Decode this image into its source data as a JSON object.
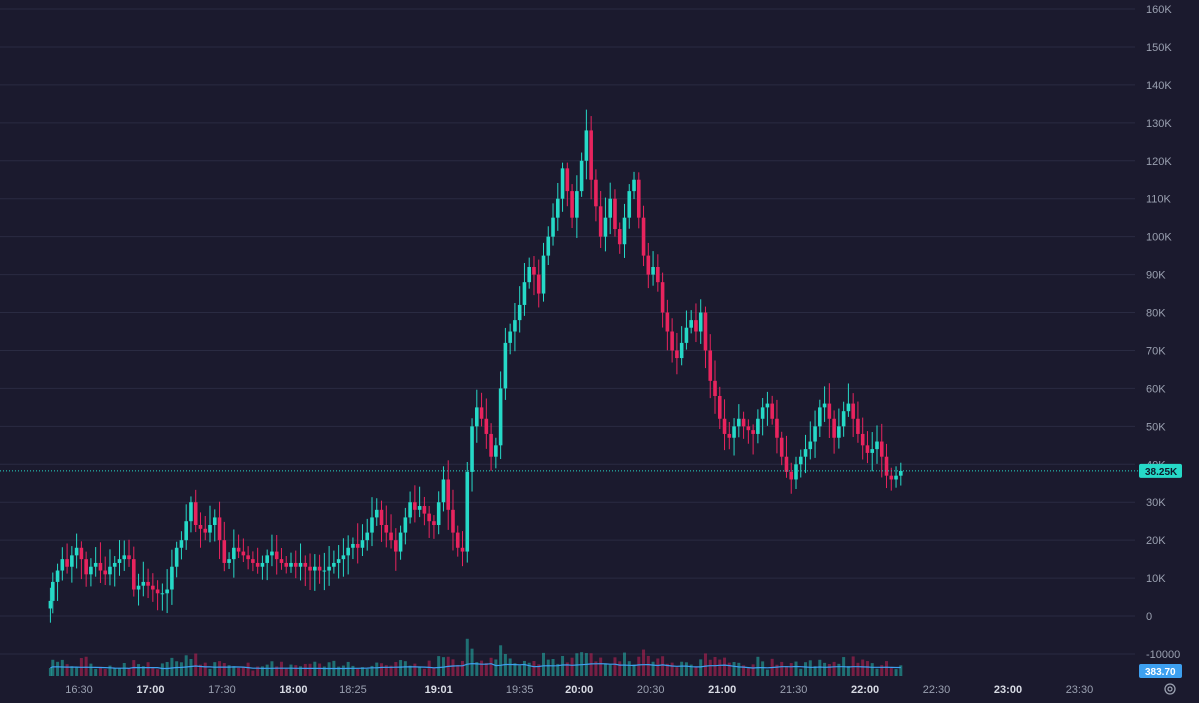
{
  "chart_data": {
    "type": "candlestick",
    "y_ticks": [
      "160K",
      "150K",
      "140K",
      "130K",
      "120K",
      "110K",
      "100K",
      "90K",
      "80K",
      "70K",
      "60K",
      "50K",
      "40K",
      "30K",
      "20K",
      "10K",
      "0",
      "-10000"
    ],
    "y_tick_values": [
      160000,
      150000,
      140000,
      130000,
      120000,
      110000,
      100000,
      90000,
      80000,
      70000,
      60000,
      50000,
      40000,
      30000,
      20000,
      10000,
      0,
      -10000
    ],
    "ylim": [
      -15500,
      162000
    ],
    "x_ticks": [
      {
        "label": "16:30",
        "bold": false
      },
      {
        "label": "17:00",
        "bold": true
      },
      {
        "label": "17:30",
        "bold": false
      },
      {
        "label": "18:00",
        "bold": true
      },
      {
        "label": "18:25",
        "bold": false
      },
      {
        "label": "19:01",
        "bold": true
      },
      {
        "label": "19:35",
        "bold": false
      },
      {
        "label": "20:00",
        "bold": true
      },
      {
        "label": "20:30",
        "bold": false
      },
      {
        "label": "21:00",
        "bold": true
      },
      {
        "label": "21:30",
        "bold": false
      },
      {
        "label": "22:00",
        "bold": true
      },
      {
        "label": "22:30",
        "bold": false
      },
      {
        "label": "23:00",
        "bold": true
      },
      {
        "label": "23:30",
        "bold": false
      }
    ],
    "x_tick_minutes": [
      990,
      1020,
      1050,
      1080,
      1105,
      1141,
      1175,
      1200,
      1230,
      1260,
      1290,
      1320,
      1350,
      1380,
      1410
    ],
    "series_close": [
      [
        978,
        4000
      ],
      [
        979,
        9000
      ],
      [
        981,
        12000
      ],
      [
        983,
        15000
      ],
      [
        985,
        13000
      ],
      [
        987,
        16000
      ],
      [
        989,
        18000
      ],
      [
        991,
        15000
      ],
      [
        993,
        11000
      ],
      [
        995,
        13000
      ],
      [
        997,
        14000
      ],
      [
        999,
        12000
      ],
      [
        1001,
        11000
      ],
      [
        1003,
        13000
      ],
      [
        1005,
        14000
      ],
      [
        1007,
        15000
      ],
      [
        1009,
        16000
      ],
      [
        1011,
        15000
      ],
      [
        1013,
        7000
      ],
      [
        1015,
        8000
      ],
      [
        1017,
        9000
      ],
      [
        1019,
        8000
      ],
      [
        1021,
        7000
      ],
      [
        1023,
        6000
      ],
      [
        1025,
        6000
      ],
      [
        1027,
        7000
      ],
      [
        1029,
        13000
      ],
      [
        1031,
        18000
      ],
      [
        1033,
        20000
      ],
      [
        1035,
        25000
      ],
      [
        1037,
        30000
      ],
      [
        1039,
        24000
      ],
      [
        1041,
        23000
      ],
      [
        1043,
        22000
      ],
      [
        1045,
        24000
      ],
      [
        1047,
        26000
      ],
      [
        1049,
        20000
      ],
      [
        1051,
        14000
      ],
      [
        1053,
        15000
      ],
      [
        1055,
        18000
      ],
      [
        1057,
        17000
      ],
      [
        1059,
        16000
      ],
      [
        1061,
        15000
      ],
      [
        1063,
        14000
      ],
      [
        1065,
        13000
      ],
      [
        1067,
        14000
      ],
      [
        1069,
        16000
      ],
      [
        1071,
        17000
      ],
      [
        1073,
        15000
      ],
      [
        1075,
        14000
      ],
      [
        1077,
        13000
      ],
      [
        1079,
        14000
      ],
      [
        1081,
        13000
      ],
      [
        1083,
        14000
      ],
      [
        1085,
        13000
      ],
      [
        1087,
        12000
      ],
      [
        1089,
        13000
      ],
      [
        1091,
        12000
      ],
      [
        1093,
        12000
      ],
      [
        1095,
        13000
      ],
      [
        1097,
        14000
      ],
      [
        1099,
        15000
      ],
      [
        1101,
        16000
      ],
      [
        1103,
        18000
      ],
      [
        1105,
        19000
      ],
      [
        1107,
        18000
      ],
      [
        1109,
        20000
      ],
      [
        1111,
        22000
      ],
      [
        1113,
        26000
      ],
      [
        1115,
        28000
      ],
      [
        1117,
        24000
      ],
      [
        1119,
        22000
      ],
      [
        1121,
        20000
      ],
      [
        1123,
        17000
      ],
      [
        1125,
        22000
      ],
      [
        1127,
        26000
      ],
      [
        1129,
        30000
      ],
      [
        1131,
        28000
      ],
      [
        1133,
        29000
      ],
      [
        1135,
        27000
      ],
      [
        1137,
        25000
      ],
      [
        1139,
        24000
      ],
      [
        1141,
        30000
      ],
      [
        1143,
        36000
      ],
      [
        1145,
        28000
      ],
      [
        1147,
        22000
      ],
      [
        1149,
        18000
      ],
      [
        1151,
        17000
      ],
      [
        1153,
        38000
      ],
      [
        1155,
        50000
      ],
      [
        1157,
        55000
      ],
      [
        1159,
        52000
      ],
      [
        1161,
        48000
      ],
      [
        1163,
        42000
      ],
      [
        1165,
        45000
      ],
      [
        1167,
        60000
      ],
      [
        1169,
        72000
      ],
      [
        1171,
        75000
      ],
      [
        1173,
        78000
      ],
      [
        1175,
        82000
      ],
      [
        1177,
        88000
      ],
      [
        1179,
        92000
      ],
      [
        1181,
        90000
      ],
      [
        1183,
        85000
      ],
      [
        1185,
        95000
      ],
      [
        1187,
        100000
      ],
      [
        1189,
        105000
      ],
      [
        1191,
        110000
      ],
      [
        1193,
        118000
      ],
      [
        1195,
        112000
      ],
      [
        1197,
        105000
      ],
      [
        1199,
        112000
      ],
      [
        1201,
        120000
      ],
      [
        1203,
        128000
      ],
      [
        1205,
        115000
      ],
      [
        1207,
        108000
      ],
      [
        1209,
        100000
      ],
      [
        1211,
        105000
      ],
      [
        1213,
        110000
      ],
      [
        1215,
        102000
      ],
      [
        1217,
        98000
      ],
      [
        1219,
        105000
      ],
      [
        1221,
        112000
      ],
      [
        1223,
        115000
      ],
      [
        1225,
        105000
      ],
      [
        1227,
        95000
      ],
      [
        1229,
        90000
      ],
      [
        1231,
        92000
      ],
      [
        1233,
        88000
      ],
      [
        1235,
        80000
      ],
      [
        1237,
        75000
      ],
      [
        1239,
        70000
      ],
      [
        1241,
        68000
      ],
      [
        1243,
        72000
      ],
      [
        1245,
        76000
      ],
      [
        1247,
        78000
      ],
      [
        1249,
        75000
      ],
      [
        1251,
        80000
      ],
      [
        1253,
        70000
      ],
      [
        1255,
        62000
      ],
      [
        1257,
        58000
      ],
      [
        1259,
        52000
      ],
      [
        1261,
        48000
      ],
      [
        1263,
        47000
      ],
      [
        1265,
        50000
      ],
      [
        1267,
        52000
      ],
      [
        1269,
        50000
      ],
      [
        1271,
        49000
      ],
      [
        1273,
        48000
      ],
      [
        1275,
        52000
      ],
      [
        1277,
        55000
      ],
      [
        1279,
        56000
      ],
      [
        1281,
        52000
      ],
      [
        1283,
        47000
      ],
      [
        1285,
        42000
      ],
      [
        1287,
        38000
      ],
      [
        1289,
        36000
      ],
      [
        1291,
        40000
      ],
      [
        1293,
        42000
      ],
      [
        1295,
        44000
      ],
      [
        1297,
        46000
      ],
      [
        1299,
        50000
      ],
      [
        1301,
        55000
      ],
      [
        1303,
        56000
      ],
      [
        1305,
        52000
      ],
      [
        1307,
        47000
      ],
      [
        1309,
        50000
      ],
      [
        1311,
        54000
      ],
      [
        1313,
        56000
      ],
      [
        1315,
        52000
      ],
      [
        1317,
        48000
      ],
      [
        1319,
        45000
      ],
      [
        1321,
        43000
      ],
      [
        1323,
        44000
      ],
      [
        1325,
        46000
      ],
      [
        1327,
        42000
      ],
      [
        1329,
        37000
      ],
      [
        1331,
        36000
      ],
      [
        1333,
        37000
      ],
      [
        1335,
        38250
      ]
    ],
    "current_price": 38250,
    "current_price_label": "38.25K",
    "volume_ma_label": "383.70",
    "colors": {
      "up": "#26d9c7",
      "down": "#e8245e",
      "volume_ma": "#3da0f0",
      "background": "#1b1a2e",
      "grid": "#2a2b42"
    }
  }
}
